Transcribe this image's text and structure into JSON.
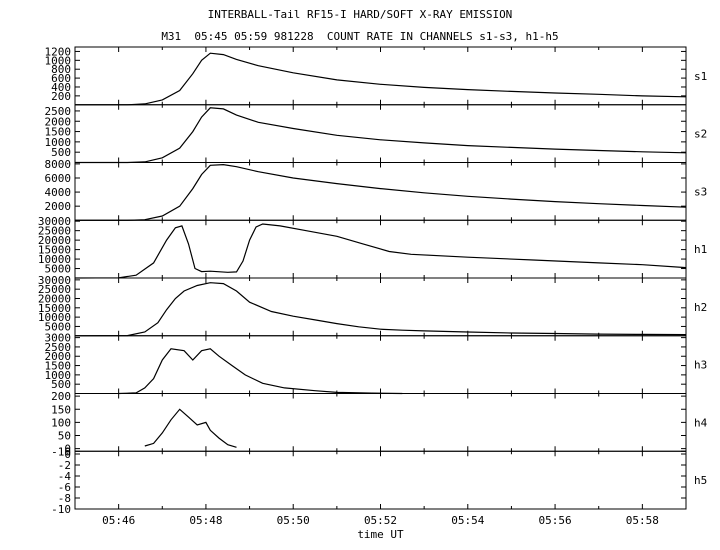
{
  "title": "INTERBALL-Tail RF15-I HARD/SOFT X-RAY EMISSION",
  "subtitle": "M31  05:45 05:59 981228  COUNT RATE IN CHANNELS s1-s3, h1-h5",
  "chart_data": {
    "type": "line",
    "title": "INTERBALL-Tail RF15-I HARD/SOFT X-RAY EMISSION",
    "subtitle": "M31  05:45 05:59 981228  COUNT RATE IN CHANNELS s1-s3, h1-h5",
    "xlabel": "time UT",
    "x_unit": "minutes after 05:45 UT",
    "xlim": [
      0,
      14
    ],
    "x_ticks": [
      {
        "value": 1,
        "label": "05:46"
      },
      {
        "value": 3,
        "label": "05:48"
      },
      {
        "value": 5,
        "label": "05:50"
      },
      {
        "value": 7,
        "label": "05:52"
      },
      {
        "value": 9,
        "label": "05:54"
      },
      {
        "value": 11,
        "label": "05:56"
      },
      {
        "value": 13,
        "label": "05:58"
      }
    ],
    "panels": [
      {
        "name": "s1",
        "ylim": [
          0,
          1300
        ],
        "yticks": [
          200,
          400,
          600,
          800,
          1000,
          1200
        ],
        "points": [
          [
            0,
            0
          ],
          [
            1.2,
            0
          ],
          [
            1.6,
            20
          ],
          [
            2.0,
            110
          ],
          [
            2.4,
            320
          ],
          [
            2.7,
            700
          ],
          [
            2.9,
            1000
          ],
          [
            3.1,
            1160
          ],
          [
            3.4,
            1130
          ],
          [
            3.7,
            1020
          ],
          [
            4.2,
            880
          ],
          [
            5.0,
            720
          ],
          [
            6.0,
            560
          ],
          [
            7.0,
            460
          ],
          [
            8.0,
            390
          ],
          [
            9.0,
            340
          ],
          [
            10.0,
            300
          ],
          [
            11.0,
            265
          ],
          [
            12.0,
            235
          ],
          [
            13.0,
            200
          ],
          [
            14.0,
            180
          ]
        ]
      },
      {
        "name": "s2",
        "ylim": [
          0,
          2800
        ],
        "yticks": [
          500,
          1000,
          1500,
          2000,
          2500
        ],
        "points": [
          [
            0,
            0
          ],
          [
            1.2,
            0
          ],
          [
            1.6,
            30
          ],
          [
            2.0,
            230
          ],
          [
            2.4,
            700
          ],
          [
            2.7,
            1500
          ],
          [
            2.9,
            2200
          ],
          [
            3.1,
            2650
          ],
          [
            3.4,
            2600
          ],
          [
            3.7,
            2300
          ],
          [
            4.2,
            1950
          ],
          [
            5.0,
            1650
          ],
          [
            6.0,
            1320
          ],
          [
            7.0,
            1100
          ],
          [
            8.0,
            950
          ],
          [
            9.0,
            820
          ],
          [
            10.0,
            730
          ],
          [
            11.0,
            650
          ],
          [
            12.0,
            580
          ],
          [
            13.0,
            520
          ],
          [
            14.0,
            470
          ]
        ]
      },
      {
        "name": "s3",
        "ylim": [
          0,
          8200
        ],
        "yticks": [
          2000,
          4000,
          6000,
          8000
        ],
        "points": [
          [
            0,
            0
          ],
          [
            1.2,
            0
          ],
          [
            1.6,
            80
          ],
          [
            2.0,
            600
          ],
          [
            2.4,
            2000
          ],
          [
            2.7,
            4500
          ],
          [
            2.9,
            6500
          ],
          [
            3.1,
            7800
          ],
          [
            3.4,
            7900
          ],
          [
            3.7,
            7600
          ],
          [
            4.2,
            6900
          ],
          [
            5.0,
            6000
          ],
          [
            6.0,
            5200
          ],
          [
            7.0,
            4500
          ],
          [
            8.0,
            3900
          ],
          [
            9.0,
            3400
          ],
          [
            10.0,
            3000
          ],
          [
            11.0,
            2650
          ],
          [
            12.0,
            2350
          ],
          [
            13.0,
            2100
          ],
          [
            14.0,
            1850
          ]
        ]
      },
      {
        "name": "h1",
        "ylim": [
          0,
          30500
        ],
        "yticks": [
          5000,
          10000,
          15000,
          20000,
          25000,
          30000
        ],
        "points": [
          [
            0,
            0
          ],
          [
            1.0,
            100
          ],
          [
            1.4,
            1500
          ],
          [
            1.8,
            8000
          ],
          [
            2.1,
            20000
          ],
          [
            2.3,
            26500
          ],
          [
            2.45,
            27500
          ],
          [
            2.6,
            18000
          ],
          [
            2.75,
            5000
          ],
          [
            2.9,
            3400
          ],
          [
            3.1,
            3600
          ],
          [
            3.5,
            3000
          ],
          [
            3.7,
            3200
          ],
          [
            3.85,
            9000
          ],
          [
            4.0,
            20000
          ],
          [
            4.15,
            27000
          ],
          [
            4.3,
            28500
          ],
          [
            4.7,
            27500
          ],
          [
            5.3,
            25000
          ],
          [
            6.0,
            22000
          ],
          [
            6.6,
            18000
          ],
          [
            7.2,
            14000
          ],
          [
            7.7,
            12500
          ],
          [
            9.0,
            11000
          ],
          [
            10.5,
            9500
          ],
          [
            12.0,
            8000
          ],
          [
            13.0,
            7000
          ],
          [
            14.0,
            5500
          ]
        ]
      },
      {
        "name": "h2",
        "ylim": [
          0,
          31000
        ],
        "yticks": [
          5000,
          10000,
          15000,
          20000,
          25000,
          30000
        ],
        "points": [
          [
            0,
            0
          ],
          [
            1.2,
            100
          ],
          [
            1.6,
            2000
          ],
          [
            1.9,
            7000
          ],
          [
            2.1,
            14000
          ],
          [
            2.3,
            20000
          ],
          [
            2.5,
            24000
          ],
          [
            2.8,
            27000
          ],
          [
            3.1,
            28500
          ],
          [
            3.4,
            28000
          ],
          [
            3.7,
            24000
          ],
          [
            4.0,
            18000
          ],
          [
            4.5,
            13000
          ],
          [
            5.0,
            10500
          ],
          [
            5.5,
            8500
          ],
          [
            6.0,
            6500
          ],
          [
            6.5,
            4800
          ],
          [
            7.0,
            3500
          ],
          [
            7.5,
            3000
          ],
          [
            8.0,
            2600
          ],
          [
            9.0,
            2000
          ],
          [
            10.0,
            1500
          ],
          [
            11.0,
            1200
          ],
          [
            12.0,
            900
          ],
          [
            13.0,
            700
          ],
          [
            14.0,
            600
          ]
        ]
      },
      {
        "name": "h3",
        "ylim": [
          0,
          3100
        ],
        "yticks": [
          500,
          1000,
          1500,
          2000,
          2500,
          3000
        ],
        "points": [
          [
            1.0,
            0
          ],
          [
            1.4,
            30
          ],
          [
            1.6,
            300
          ],
          [
            1.8,
            800
          ],
          [
            2.0,
            1800
          ],
          [
            2.2,
            2400
          ],
          [
            2.5,
            2300
          ],
          [
            2.7,
            1800
          ],
          [
            2.9,
            2300
          ],
          [
            3.1,
            2400
          ],
          [
            3.3,
            2000
          ],
          [
            3.6,
            1500
          ],
          [
            3.9,
            1000
          ],
          [
            4.3,
            550
          ],
          [
            4.8,
            300
          ],
          [
            5.5,
            150
          ],
          [
            6.0,
            60
          ],
          [
            6.8,
            20
          ],
          [
            7.5,
            0
          ]
        ]
      },
      {
        "name": "h4",
        "ylim": [
          -10,
          210
        ],
        "yticks": [
          -10,
          0,
          50,
          100,
          150,
          200
        ],
        "points": [
          [
            1.6,
            10
          ],
          [
            1.8,
            20
          ],
          [
            2.0,
            60
          ],
          [
            2.2,
            110
          ],
          [
            2.4,
            150
          ],
          [
            2.6,
            120
          ],
          [
            2.8,
            90
          ],
          [
            3.0,
            100
          ],
          [
            3.1,
            70
          ],
          [
            3.3,
            40
          ],
          [
            3.5,
            15
          ],
          [
            3.7,
            5
          ]
        ]
      },
      {
        "name": "h5",
        "ylim": [
          -10,
          0.5
        ],
        "yticks": [
          -10,
          -8,
          -6,
          -4,
          -2,
          0
        ],
        "points": []
      }
    ]
  }
}
